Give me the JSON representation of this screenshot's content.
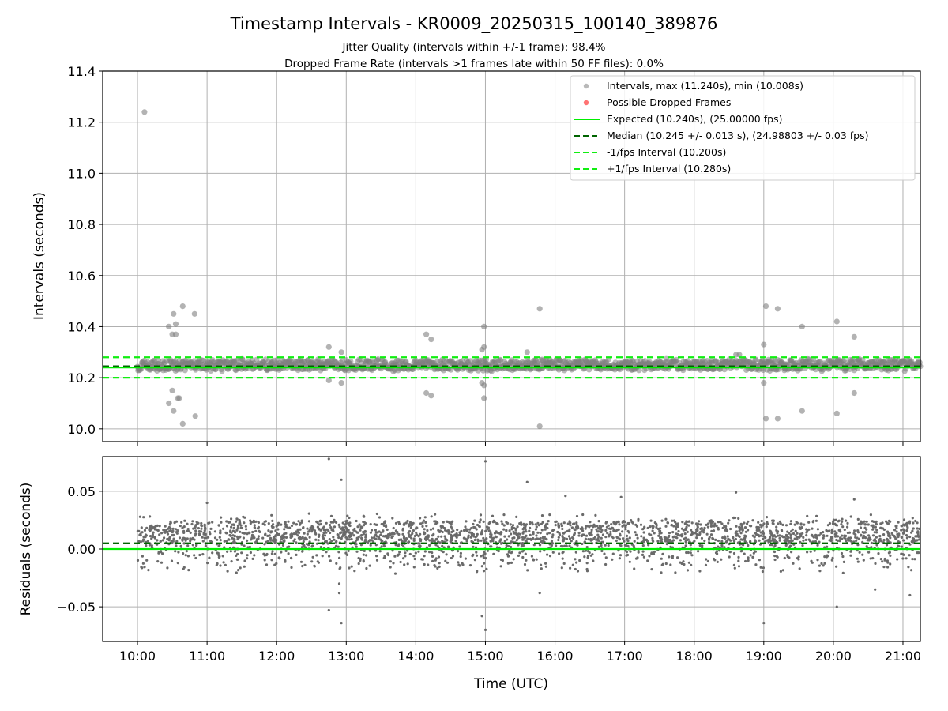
{
  "title": "Timestamp Intervals - KR0009_20250315_100140_389876",
  "subtitle_jitter": "Jitter Quality (intervals within +/-1 frame): 98.4%",
  "subtitle_dropped": "Dropped Frame Rate (intervals >1 frames late within 50 FF files): 0.0%",
  "colors": {
    "points": "#808080",
    "dropped": "#ff5a5a",
    "expected": "#00ee00",
    "median": "#006400",
    "bounds": "#11ee11",
    "grid": "#b0b0b0"
  },
  "chart_data": [
    {
      "type": "scatter",
      "ylabel": "Intervals (seconds)",
      "ylim": [
        9.95,
        11.4
      ],
      "xlim_hours": [
        9.5,
        21.25
      ],
      "yticks": [
        "10.0",
        "10.2",
        "10.4",
        "10.6",
        "10.8",
        "11.0",
        "11.2",
        "11.4"
      ],
      "grid": true,
      "legend_position": "top-right",
      "legend": [
        "Intervals, max (11.240s), min (10.008s)",
        "Possible Dropped Frames",
        "Expected (10.240s), (25.00000 fps)",
        "Median (10.245 +/- 0.013 s), (24.98803 +/- 0.03 fps)",
        "-1/fps Interval (10.200s)",
        "+1/fps Interval (10.280s)"
      ],
      "expected": 10.24,
      "median": 10.245,
      "lower_bound": 10.2,
      "upper_bound": 10.28,
      "max": 11.24,
      "min": 10.008,
      "x_range_hours": [
        10.0,
        21.25
      ],
      "main_band": [
        10.225,
        10.275
      ],
      "outliers": [
        [
          10.1,
          11.24
        ],
        [
          10.45,
          10.4
        ],
        [
          10.5,
          10.37
        ],
        [
          10.52,
          10.45
        ],
        [
          10.55,
          10.41
        ],
        [
          10.55,
          10.37
        ],
        [
          10.65,
          10.48
        ],
        [
          10.82,
          10.45
        ],
        [
          10.45,
          10.1
        ],
        [
          10.5,
          10.15
        ],
        [
          10.52,
          10.07
        ],
        [
          10.58,
          10.12
        ],
        [
          10.6,
          10.12
        ],
        [
          10.65,
          10.02
        ],
        [
          10.83,
          10.05
        ],
        [
          12.75,
          10.32
        ],
        [
          12.93,
          10.3
        ],
        [
          12.75,
          10.19
        ],
        [
          12.93,
          10.18
        ],
        [
          14.15,
          10.37
        ],
        [
          14.22,
          10.35
        ],
        [
          14.15,
          10.14
        ],
        [
          14.22,
          10.13
        ],
        [
          14.95,
          10.31
        ],
        [
          14.98,
          10.32
        ],
        [
          14.98,
          10.4
        ],
        [
          14.95,
          10.18
        ],
        [
          14.98,
          10.17
        ],
        [
          14.98,
          10.12
        ],
        [
          15.6,
          10.3
        ],
        [
          15.78,
          10.47
        ],
        [
          15.78,
          10.01
        ],
        [
          18.6,
          10.29
        ],
        [
          18.65,
          10.29
        ],
        [
          19.0,
          10.33
        ],
        [
          19.03,
          10.48
        ],
        [
          19.2,
          10.47
        ],
        [
          19.0,
          10.18
        ],
        [
          19.03,
          10.04
        ],
        [
          19.2,
          10.04
        ],
        [
          19.55,
          10.4
        ],
        [
          19.55,
          10.07
        ],
        [
          20.05,
          10.42
        ],
        [
          20.3,
          10.36
        ],
        [
          20.05,
          10.06
        ],
        [
          20.3,
          10.14
        ]
      ]
    },
    {
      "type": "scatter",
      "xlabel": "Time (UTC)",
      "ylabel": "Residuals (seconds)",
      "ylim": [
        -0.08,
        0.08
      ],
      "xlim_hours": [
        9.5,
        21.25
      ],
      "yticks": [
        "−0.05",
        "0.00",
        "0.05"
      ],
      "xticks": [
        "10:00",
        "11:00",
        "12:00",
        "13:00",
        "14:00",
        "15:00",
        "16:00",
        "17:00",
        "18:00",
        "19:00",
        "20:00",
        "21:00"
      ],
      "grid": true,
      "expected": 0.0,
      "median": 0.005,
      "noise_range": [
        -0.02,
        0.03
      ],
      "outliers": [
        [
          12.75,
          0.078
        ],
        [
          12.93,
          0.06
        ],
        [
          15.0,
          0.076
        ],
        [
          15.6,
          0.058
        ],
        [
          12.75,
          -0.053
        ],
        [
          12.93,
          -0.064
        ],
        [
          12.9,
          -0.03
        ],
        [
          12.9,
          -0.038
        ],
        [
          14.95,
          -0.058
        ],
        [
          15.0,
          -0.07
        ],
        [
          19.0,
          -0.064
        ],
        [
          18.6,
          0.049
        ],
        [
          20.05,
          -0.05
        ],
        [
          21.1,
          -0.04
        ],
        [
          20.6,
          -0.035
        ],
        [
          15.78,
          -0.038
        ],
        [
          11.0,
          0.04
        ],
        [
          16.15,
          0.046
        ],
        [
          16.95,
          0.045
        ],
        [
          20.3,
          0.043
        ]
      ]
    }
  ]
}
